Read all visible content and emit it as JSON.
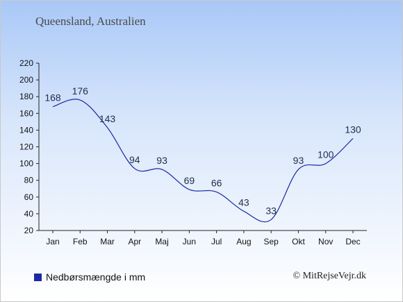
{
  "title": "Queensland, Australien",
  "legend": {
    "label": "Nedbørsmængde i mm"
  },
  "credit": "© MitRejseVejr.dk",
  "colors": {
    "line": "#1a2aa0",
    "axis": "#222222",
    "label": "#1e2d4d"
  },
  "chart_data": {
    "type": "line",
    "title": "Queensland, Australien",
    "xlabel": "",
    "ylabel": "",
    "categories": [
      "Jan",
      "Feb",
      "Mar",
      "Apr",
      "Maj",
      "Jun",
      "Jul",
      "Aug",
      "Sep",
      "Okt",
      "Nov",
      "Dec"
    ],
    "series": [
      {
        "name": "Nedbørsmængde i mm",
        "values": [
          168,
          176,
          143,
          94,
          93,
          69,
          66,
          43,
          33,
          93,
          100,
          130
        ]
      }
    ],
    "ylim": [
      20,
      220
    ],
    "yticks": [
      20,
      40,
      60,
      80,
      100,
      120,
      140,
      160,
      180,
      200,
      220
    ],
    "grid": false,
    "data_labels": true,
    "legend_position": "bottom-left"
  }
}
